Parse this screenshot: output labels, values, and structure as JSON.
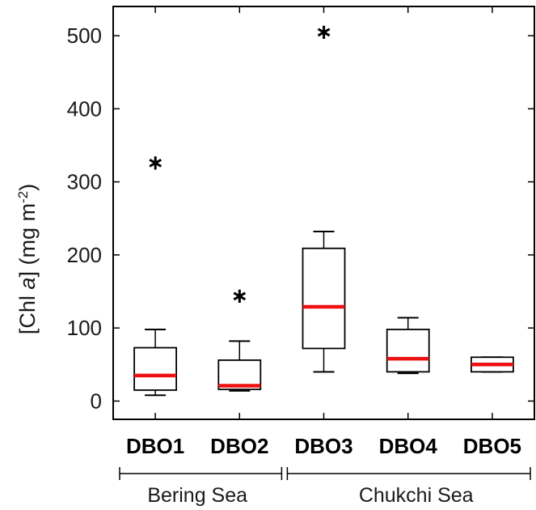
{
  "chart_data": {
    "type": "box",
    "ylabel": {
      "prefix": "[Chl ",
      "italic": "a",
      "middle": "] (mg m",
      "superscript": "-2",
      "suffix": ")"
    },
    "ylim": [
      -25,
      540
    ],
    "yticks": [
      0,
      100,
      200,
      300,
      400,
      500
    ],
    "ytick_labels": [
      "0",
      "100",
      "200",
      "300",
      "400",
      "500"
    ],
    "categories": [
      "DBO1",
      "DBO2",
      "DBO3",
      "DBO4",
      "DBO5"
    ],
    "boxes": [
      {
        "category": "DBO1",
        "whisker_low": 8,
        "q1": 15,
        "median": 35,
        "q3": 73,
        "whisker_high": 98,
        "outliers": [
          331
        ]
      },
      {
        "category": "DBO2",
        "whisker_low": 14,
        "q1": 16,
        "median": 21,
        "q3": 56,
        "whisker_high": 82,
        "outliers": [
          149
        ]
      },
      {
        "category": "DBO3",
        "whisker_low": 40,
        "q1": 72,
        "median": 129,
        "q3": 209,
        "whisker_high": 232,
        "outliers": [
          510
        ]
      },
      {
        "category": "DBO4",
        "whisker_low": 38,
        "q1": 40,
        "median": 58,
        "q3": 98,
        "whisker_high": 114,
        "outliers": []
      },
      {
        "category": "DBO5",
        "whisker_low": 40,
        "q1": 40,
        "median": 50,
        "q3": 60,
        "whisker_high": 60,
        "outliers": []
      }
    ],
    "groups": [
      {
        "label": "Bering Sea",
        "categories": [
          "DBO1",
          "DBO2"
        ]
      },
      {
        "label": "Chukchi Sea",
        "categories": [
          "DBO3",
          "DBO4",
          "DBO5"
        ]
      }
    ],
    "colors": {
      "median": "#ee1111",
      "box": "#000000",
      "outlier": "#000000"
    }
  }
}
